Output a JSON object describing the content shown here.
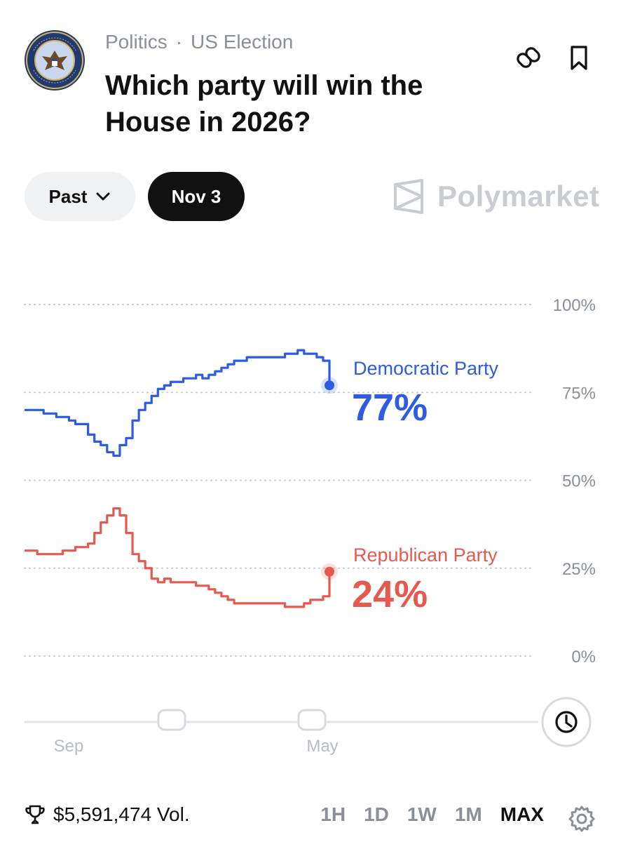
{
  "header": {
    "category": "Politics",
    "subcategory": "US Election",
    "separator": "·",
    "title": "Which party will win the House in 2026?"
  },
  "filters": {
    "past_label": "Past",
    "date_label": "Nov 3"
  },
  "brand": "Polymarket",
  "chart_data": {
    "type": "line",
    "x_ticks": [
      "Sep",
      "May"
    ],
    "y_ticks": [
      "100%",
      "75%",
      "50%",
      "25%",
      "0%"
    ],
    "ylim": [
      0,
      100
    ],
    "grid": true,
    "series": [
      {
        "name": "Democratic Party",
        "current_label": "77%",
        "color": "#2d5be3",
        "values": [
          70,
          70,
          70,
          69,
          69,
          68,
          68,
          67,
          66,
          66,
          63,
          61,
          60,
          58,
          57,
          60,
          62,
          67,
          70,
          72,
          74,
          76,
          77,
          78,
          78,
          79,
          79,
          80,
          79,
          80,
          81,
          82,
          83,
          84,
          84,
          85,
          85,
          85,
          85,
          85,
          85,
          86,
          86,
          87,
          86,
          86,
          85,
          84,
          77
        ]
      },
      {
        "name": "Republican Party",
        "current_label": "24%",
        "color": "#e55a4e",
        "values": [
          30,
          30,
          29,
          29,
          29,
          29,
          30,
          30,
          31,
          31,
          32,
          35,
          38,
          40,
          42,
          40,
          35,
          29,
          27,
          25,
          22,
          21,
          22,
          21,
          21,
          21,
          21,
          20,
          20,
          19,
          18,
          17,
          16,
          15,
          15,
          15,
          15,
          15,
          15,
          15,
          15,
          14,
          14,
          14,
          15,
          16,
          16,
          17,
          24
        ]
      }
    ]
  },
  "footer": {
    "volume": "$5,591,474 Vol.",
    "ranges": [
      "1H",
      "1D",
      "1W",
      "1M",
      "MAX"
    ],
    "active_range": "MAX"
  }
}
